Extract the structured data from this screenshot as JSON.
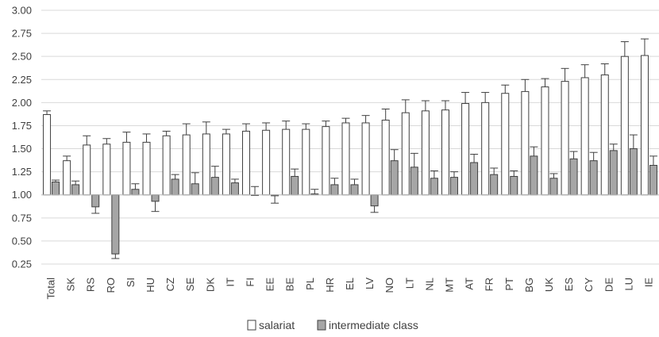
{
  "chart_data": {
    "type": "bar",
    "categories": [
      "Total",
      "SK",
      "RS",
      "RO",
      "SI",
      "HU",
      "CZ",
      "SE",
      "DK",
      "IT",
      "FI",
      "EE",
      "BE",
      "PL",
      "HR",
      "EL",
      "LV",
      "NO",
      "LT",
      "NL",
      "MT",
      "AT",
      "FR",
      "PT",
      "BG",
      "UK",
      "ES",
      "CY",
      "DE",
      "LU",
      "IE"
    ],
    "baseline": 1.0,
    "ylim": [
      0.25,
      3.0
    ],
    "yticks": [
      "0.25",
      "0.50",
      "0.75",
      "1.00",
      "1.25",
      "1.50",
      "1.75",
      "2.00",
      "2.25",
      "2.50",
      "2.75",
      "3.00"
    ],
    "grid": true,
    "legend": "bottom",
    "series": [
      {
        "name": "salariat",
        "color": "#ffffff",
        "values": [
          1.87,
          1.37,
          1.54,
          1.55,
          1.57,
          1.57,
          1.64,
          1.65,
          1.66,
          1.66,
          1.69,
          1.7,
          1.71,
          1.71,
          1.74,
          1.78,
          1.78,
          1.81,
          1.89,
          1.91,
          1.92,
          1.99,
          2.0,
          2.1,
          2.12,
          2.17,
          2.23,
          2.27,
          2.3,
          2.5,
          2.51
        ],
        "errors": [
          0.04,
          0.05,
          0.1,
          0.06,
          0.11,
          0.09,
          0.05,
          0.12,
          0.13,
          0.05,
          0.08,
          0.08,
          0.09,
          0.06,
          0.06,
          0.05,
          0.08,
          0.12,
          0.14,
          0.11,
          0.1,
          0.12,
          0.11,
          0.09,
          0.13,
          0.09,
          0.14,
          0.14,
          0.12,
          0.16,
          0.18
        ]
      },
      {
        "name": "intermediate class",
        "color": "#a6a6a6",
        "values": [
          1.14,
          1.11,
          0.87,
          0.36,
          1.06,
          0.93,
          1.17,
          1.12,
          1.19,
          1.13,
          1.0,
          0.99,
          1.2,
          1.01,
          1.11,
          1.11,
          0.88,
          1.37,
          1.3,
          1.18,
          1.19,
          1.35,
          1.22,
          1.2,
          1.42,
          1.18,
          1.39,
          1.37,
          1.48,
          1.5,
          1.32
        ],
        "errors": [
          0.02,
          0.04,
          0.07,
          0.05,
          0.06,
          0.11,
          0.05,
          0.12,
          0.12,
          0.04,
          0.09,
          0.08,
          0.08,
          0.05,
          0.07,
          0.06,
          0.07,
          0.12,
          0.15,
          0.08,
          0.06,
          0.09,
          0.07,
          0.06,
          0.1,
          0.05,
          0.08,
          0.09,
          0.07,
          0.15,
          0.1
        ]
      }
    ]
  },
  "colors": {
    "axis": "#bfbfbf",
    "grid": "#d9d9d9",
    "bar_stroke": "#404040",
    "text": "#404040"
  }
}
